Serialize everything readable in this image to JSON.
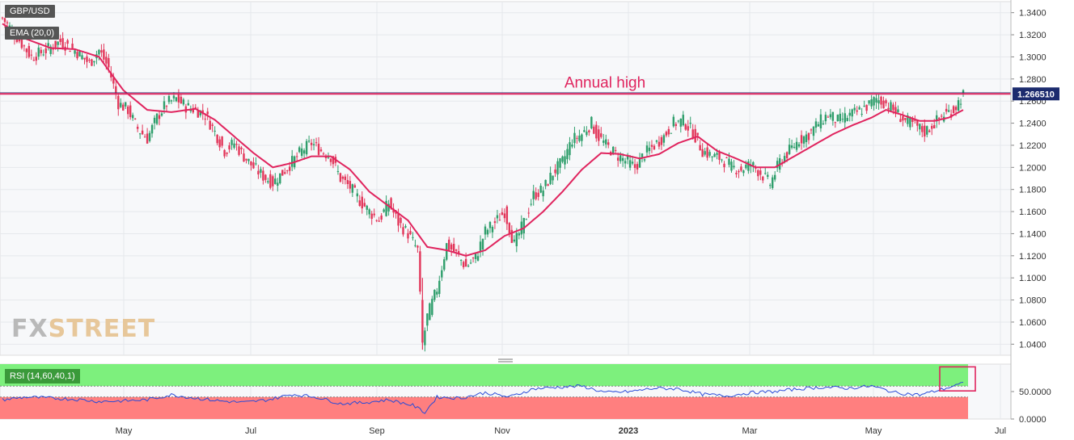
{
  "chart": {
    "symbol": "GBP/USD",
    "indicator_label": "EMA (20,0)",
    "rsi_label": "RSI (14,60,40,1)",
    "annotation": "Annual high",
    "current_price_label": "1.266510",
    "logo": {
      "part1": "FX",
      "part2": "STREET"
    },
    "colors": {
      "up": "#2e9e6b",
      "down": "#e2365a",
      "ema": "#e0245e",
      "annual_high_line": "#e0245e",
      "rsi_line": "#2a4bd7",
      "rsi_upper_zone": "#7df07d",
      "rsi_lower_zone": "#ff7f7f",
      "price_tag": "#1c2b6e"
    }
  },
  "chart_data": [
    {
      "type": "candlestick",
      "annual_high": 1.2665,
      "y_ticks": [
        "1.3400",
        "1.3200",
        "1.3000",
        "1.2800",
        "1.2600",
        "1.2400",
        "1.2200",
        "1.2000",
        "1.1800",
        "1.1600",
        "1.1400",
        "1.1200",
        "1.1000",
        "1.0800",
        "1.0600",
        "1.0400"
      ],
      "x_ticks": [
        "May",
        "Jul",
        "Sep",
        "Nov",
        "2023",
        "Mar",
        "May",
        "Jul"
      ],
      "ylim": [
        1.03,
        1.35
      ],
      "price_path": [
        [
          0,
          1.335
        ],
        [
          6,
          1.318
        ],
        [
          12,
          1.3
        ],
        [
          18,
          1.306
        ],
        [
          24,
          1.314
        ],
        [
          30,
          1.306
        ],
        [
          36,
          1.294
        ],
        [
          40,
          1.306
        ],
        [
          44,
          1.29
        ],
        [
          48,
          1.258
        ],
        [
          52,
          1.252
        ],
        [
          56,
          1.235
        ],
        [
          60,
          1.226
        ],
        [
          64,
          1.245
        ],
        [
          68,
          1.258
        ],
        [
          72,
          1.262
        ],
        [
          76,
          1.255
        ],
        [
          80,
          1.252
        ],
        [
          84,
          1.248
        ],
        [
          88,
          1.232
        ],
        [
          92,
          1.215
        ],
        [
          96,
          1.222
        ],
        [
          100,
          1.21
        ],
        [
          104,
          1.2
        ],
        [
          108,
          1.192
        ],
        [
          112,
          1.186
        ],
        [
          116,
          1.195
        ],
        [
          120,
          1.205
        ],
        [
          124,
          1.215
        ],
        [
          128,
          1.222
        ],
        [
          132,
          1.215
        ],
        [
          136,
          1.21
        ],
        [
          140,
          1.19
        ],
        [
          144,
          1.182
        ],
        [
          148,
          1.17
        ],
        [
          152,
          1.16
        ],
        [
          156,
          1.152
        ],
        [
          160,
          1.168
        ],
        [
          164,
          1.15
        ],
        [
          168,
          1.14
        ],
        [
          172,
          1.125
        ],
        [
          174,
          1.04
        ],
        [
          176,
          1.065
        ],
        [
          180,
          1.09
        ],
        [
          184,
          1.13
        ],
        [
          188,
          1.122
        ],
        [
          192,
          1.11
        ],
        [
          196,
          1.118
        ],
        [
          200,
          1.142
        ],
        [
          204,
          1.15
        ],
        [
          208,
          1.16
        ],
        [
          212,
          1.13
        ],
        [
          216,
          1.15
        ],
        [
          220,
          1.175
        ],
        [
          224,
          1.18
        ],
        [
          228,
          1.195
        ],
        [
          232,
          1.205
        ],
        [
          236,
          1.225
        ],
        [
          240,
          1.23
        ],
        [
          244,
          1.24
        ],
        [
          246,
          1.23
        ],
        [
          250,
          1.22
        ],
        [
          254,
          1.212
        ],
        [
          258,
          1.206
        ],
        [
          262,
          1.2
        ],
        [
          266,
          1.212
        ],
        [
          270,
          1.22
        ],
        [
          274,
          1.228
        ],
        [
          278,
          1.24
        ],
        [
          282,
          1.242
        ],
        [
          286,
          1.232
        ],
        [
          290,
          1.215
        ],
        [
          294,
          1.21
        ],
        [
          298,
          1.208
        ],
        [
          302,
          1.2
        ],
        [
          306,
          1.198
        ],
        [
          310,
          1.203
        ],
        [
          314,
          1.195
        ],
        [
          318,
          1.185
        ],
        [
          322,
          1.205
        ],
        [
          326,
          1.215
        ],
        [
          330,
          1.225
        ],
        [
          334,
          1.23
        ],
        [
          338,
          1.24
        ],
        [
          342,
          1.248
        ],
        [
          346,
          1.242
        ],
        [
          350,
          1.246
        ],
        [
          354,
          1.25
        ],
        [
          358,
          1.255
        ],
        [
          362,
          1.262
        ],
        [
          366,
          1.258
        ],
        [
          370,
          1.25
        ],
        [
          374,
          1.242
        ],
        [
          378,
          1.238
        ],
        [
          382,
          1.232
        ],
        [
          386,
          1.24
        ],
        [
          390,
          1.248
        ],
        [
          394,
          1.252
        ],
        [
          398,
          1.266
        ]
      ],
      "ema_path": [
        [
          0,
          1.33
        ],
        [
          10,
          1.316
        ],
        [
          20,
          1.308
        ],
        [
          30,
          1.307
        ],
        [
          40,
          1.3
        ],
        [
          50,
          1.27
        ],
        [
          60,
          1.252
        ],
        [
          70,
          1.25
        ],
        [
          80,
          1.253
        ],
        [
          88,
          1.243
        ],
        [
          96,
          1.228
        ],
        [
          104,
          1.213
        ],
        [
          112,
          1.2
        ],
        [
          120,
          1.204
        ],
        [
          128,
          1.21
        ],
        [
          136,
          1.21
        ],
        [
          144,
          1.198
        ],
        [
          152,
          1.178
        ],
        [
          160,
          1.165
        ],
        [
          168,
          1.152
        ],
        [
          176,
          1.128
        ],
        [
          184,
          1.125
        ],
        [
          192,
          1.12
        ],
        [
          200,
          1.125
        ],
        [
          208,
          1.138
        ],
        [
          216,
          1.145
        ],
        [
          224,
          1.16
        ],
        [
          232,
          1.178
        ],
        [
          240,
          1.198
        ],
        [
          248,
          1.213
        ],
        [
          256,
          1.212
        ],
        [
          264,
          1.208
        ],
        [
          272,
          1.212
        ],
        [
          280,
          1.222
        ],
        [
          288,
          1.228
        ],
        [
          296,
          1.215
        ],
        [
          304,
          1.208
        ],
        [
          312,
          1.2
        ],
        [
          320,
          1.2
        ],
        [
          328,
          1.21
        ],
        [
          336,
          1.22
        ],
        [
          344,
          1.23
        ],
        [
          352,
          1.238
        ],
        [
          360,
          1.245
        ],
        [
          366,
          1.252
        ],
        [
          372,
          1.248
        ],
        [
          380,
          1.242
        ],
        [
          386,
          1.242
        ],
        [
          392,
          1.245
        ],
        [
          398,
          1.252
        ]
      ]
    },
    {
      "type": "line",
      "name": "RSI",
      "y_ticks": [
        "50.0000",
        "0.0000"
      ],
      "ylim": [
        0,
        100
      ],
      "levels": [
        60,
        40
      ],
      "rsi_path": [
        [
          0,
          35
        ],
        [
          10,
          40
        ],
        [
          20,
          38
        ],
        [
          30,
          36
        ],
        [
          40,
          32
        ],
        [
          50,
          33
        ],
        [
          60,
          35
        ],
        [
          70,
          44
        ],
        [
          80,
          38
        ],
        [
          90,
          33
        ],
        [
          100,
          30
        ],
        [
          110,
          35
        ],
        [
          120,
          45
        ],
        [
          130,
          40
        ],
        [
          140,
          28
        ],
        [
          150,
          30
        ],
        [
          160,
          35
        ],
        [
          170,
          25
        ],
        [
          175,
          12
        ],
        [
          180,
          40
        ],
        [
          190,
          38
        ],
        [
          200,
          48
        ],
        [
          210,
          40
        ],
        [
          220,
          55
        ],
        [
          230,
          58
        ],
        [
          240,
          60
        ],
        [
          250,
          48
        ],
        [
          260,
          50
        ],
        [
          270,
          56
        ],
        [
          280,
          55
        ],
        [
          290,
          45
        ],
        [
          300,
          42
        ],
        [
          310,
          48
        ],
        [
          320,
          50
        ],
        [
          330,
          55
        ],
        [
          340,
          58
        ],
        [
          350,
          56
        ],
        [
          360,
          60
        ],
        [
          370,
          48
        ],
        [
          380,
          44
        ],
        [
          390,
          55
        ],
        [
          398,
          65
        ]
      ]
    }
  ]
}
